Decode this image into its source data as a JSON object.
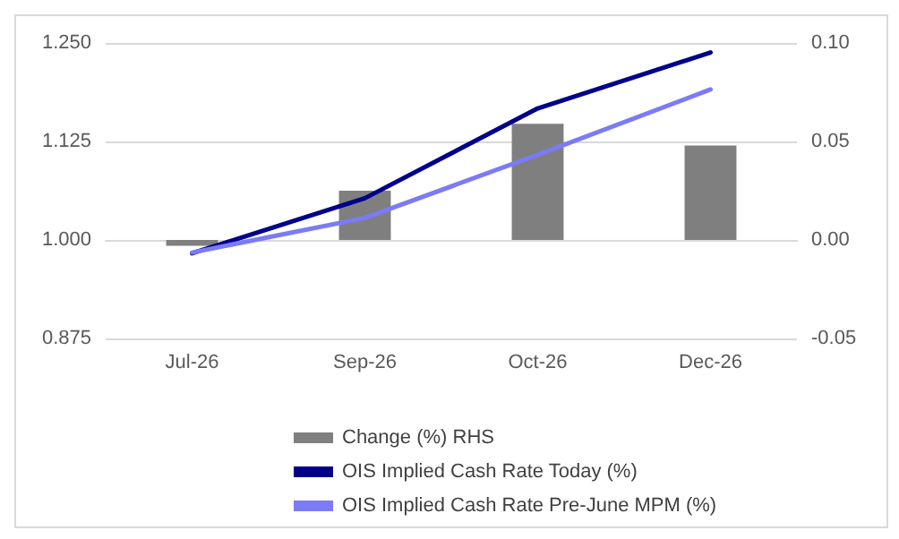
{
  "chart_data": {
    "type": "line",
    "categories": [
      "Jul-26",
      "Sep-26",
      "Oct-26",
      "Dec-26"
    ],
    "series": [
      {
        "name": "Change (%) RHS",
        "type": "bar",
        "axis": "y2",
        "color": "#7f7f7f",
        "values": [
          -0.003,
          0.025,
          0.059,
          0.048
        ]
      },
      {
        "name": "OIS Implied Cash Rate Today (%)",
        "color": "#00008b",
        "values": [
          0.983,
          1.053,
          1.167,
          1.238
        ]
      },
      {
        "name": "OIS Implied Cash Rate Pre-June MPM (%)",
        "color": "#7b7bf5",
        "values": [
          0.984,
          1.028,
          1.108,
          1.191
        ]
      }
    ],
    "ylim": [
      0.875,
      1.25
    ],
    "yticks": [
      {
        "value": 0.875,
        "label": "0.875"
      },
      {
        "value": 1,
        "label": "1.000"
      },
      {
        "value": 1.125,
        "label": "1.125"
      },
      {
        "value": 1.25,
        "label": "1.250"
      }
    ],
    "y2lim": [
      -0.05,
      0.1
    ],
    "y2ticks": [
      {
        "value": -0.05,
        "label": "-0.05"
      },
      {
        "value": 0,
        "label": "0.00"
      },
      {
        "value": 0.05,
        "label": "0.05"
      },
      {
        "value": 0.1,
        "label": "0.10"
      }
    ],
    "grid": "y",
    "legend": "bottom",
    "marker": "none",
    "line_style": "solid"
  }
}
